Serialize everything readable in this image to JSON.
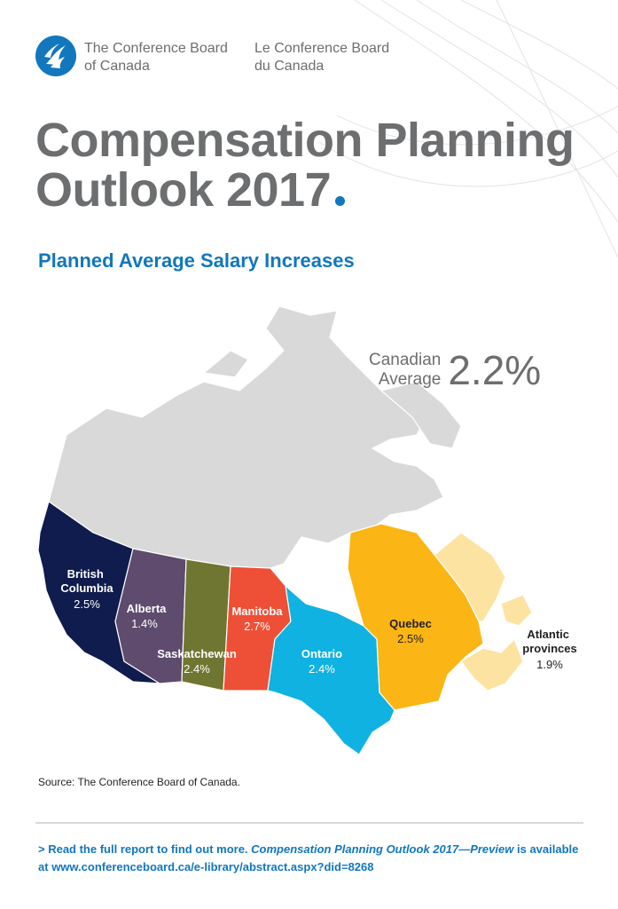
{
  "organization": {
    "name_en": [
      "The Conference Board",
      "of Canada"
    ],
    "name_fr": [
      "Le Conference Board",
      "du Canada"
    ]
  },
  "title": {
    "line1": "Compensation Planning",
    "line2": "Outlook 2017"
  },
  "subtitle": "Planned Average Salary Increases",
  "national_average": {
    "label_line1": "Canadian",
    "label_line2": "Average",
    "value": "2.2%"
  },
  "regions": [
    {
      "name": [
        "British",
        "Columbia"
      ],
      "value": "2.5%",
      "color": "#0f1c4d"
    },
    {
      "name": [
        "Alberta"
      ],
      "value": "1.4%",
      "color": "#5f4b6e"
    },
    {
      "name": [
        "Saskatchewan"
      ],
      "value": "2.4%",
      "color": "#6f7631"
    },
    {
      "name": [
        "Manitoba"
      ],
      "value": "2.7%",
      "color": "#ee4f37"
    },
    {
      "name": [
        "Ontario"
      ],
      "value": "2.4%",
      "color": "#10b2e2"
    },
    {
      "name": [
        "Quebec"
      ],
      "value": "2.5%",
      "color": "#fbb514"
    },
    {
      "name": [
        "Atlantic",
        "provinces"
      ],
      "value": "1.9%",
      "color": "#fde3a2"
    }
  ],
  "north_color": "#d9d9da",
  "accent_color": "#1277bc",
  "source": "Source: The Conference Board of Canada.",
  "footer": {
    "prefix": "> Read the full report to find out more.",
    "report_title": "Compensation Planning Outlook 2017—Preview",
    "middle": "is available at",
    "link": "www.conferenceboard.ca/e-library/abstract.aspx?did=8268"
  }
}
